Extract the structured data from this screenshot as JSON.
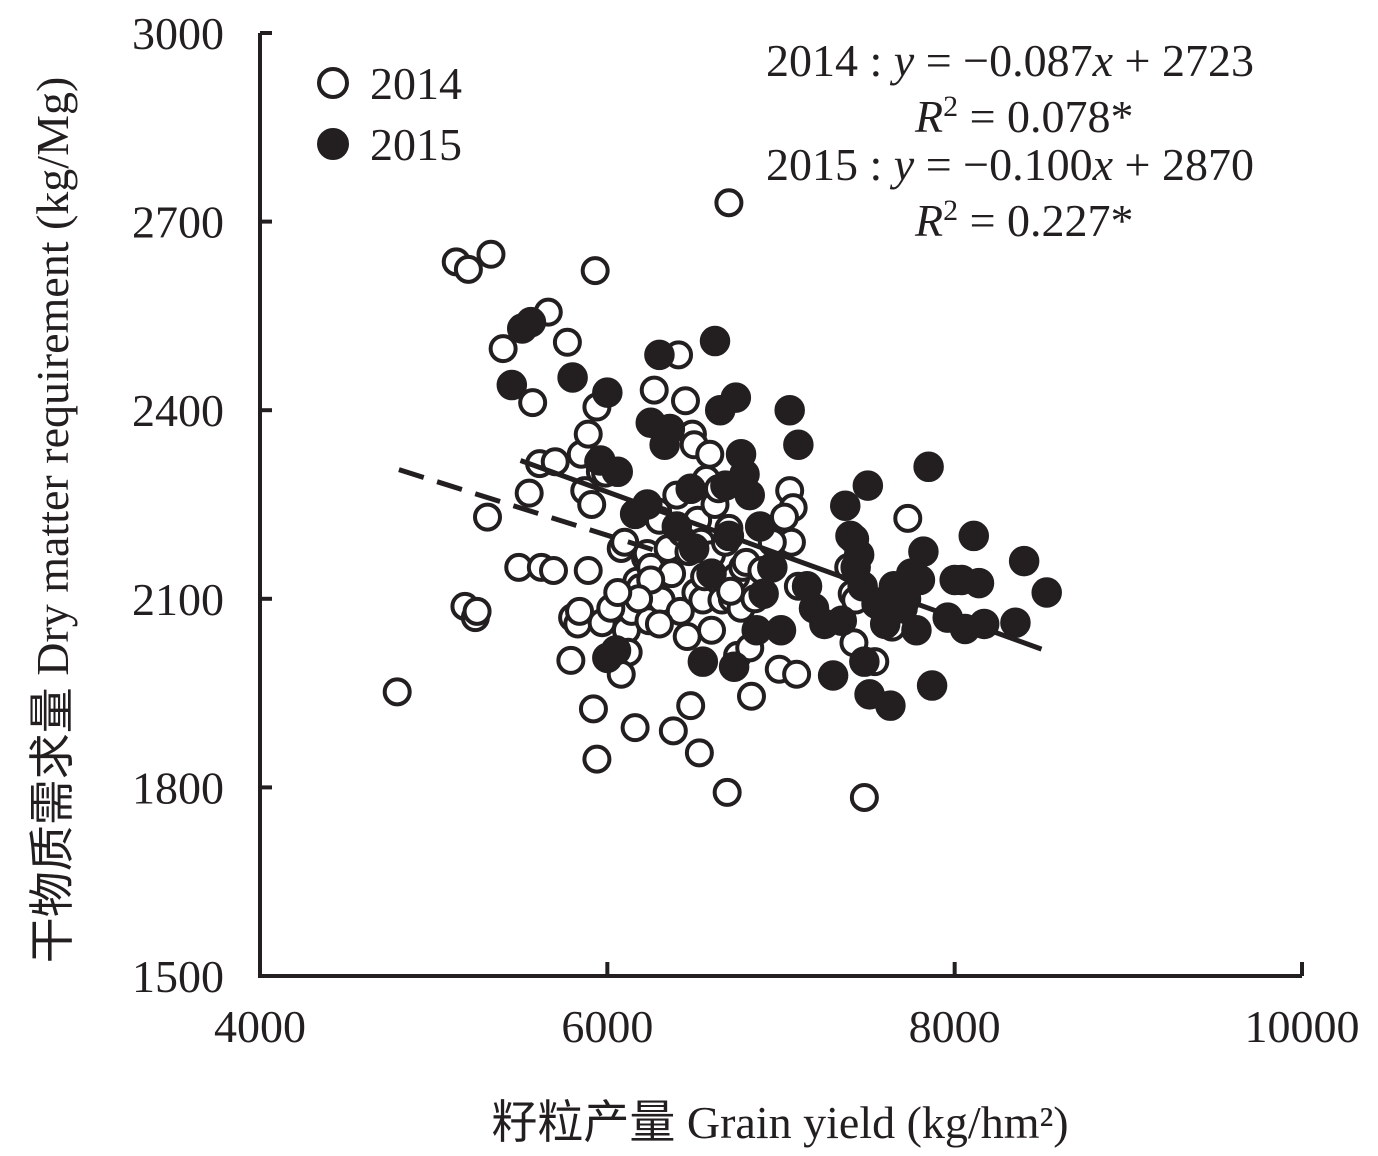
{
  "chart_data": {
    "type": "scatter",
    "title": "",
    "xlabel": "籽粒产量 Grain yield (kg/hm²)",
    "ylabel": "干物质需求量 Dry matter requirement (kg/Mg)",
    "xlim": [
      4000,
      10000
    ],
    "ylim": [
      1500,
      3000
    ],
    "xticks": [
      4000,
      6000,
      8000,
      10000
    ],
    "yticks": [
      1500,
      1800,
      2100,
      2400,
      2700,
      3000
    ],
    "xtick_labels": [
      "4000",
      "6000",
      "8000",
      "10000"
    ],
    "ytick_labels": [
      "1500",
      "1800",
      "2100",
      "2400",
      "2700",
      "3000"
    ],
    "legend_position": "top-left",
    "series": [
      {
        "name": "2014",
        "marker": "open-circle",
        "color": "#231f20",
        "fill": "#ffffff",
        "trendline": {
          "style": "dashed",
          "slope": -0.087,
          "intercept": 2723,
          "x_range": [
            4800,
            6300
          ]
        },
        "points": [
          [
            4790,
            1952
          ],
          [
            5130,
            2636
          ],
          [
            5200,
            2624
          ],
          [
            5330,
            2648
          ],
          [
            5180,
            2088
          ],
          [
            5240,
            2070
          ],
          [
            5250,
            2080
          ],
          [
            5310,
            2230
          ],
          [
            5400,
            2498
          ],
          [
            5490,
            2150
          ],
          [
            5550,
            2268
          ],
          [
            5570,
            2412
          ],
          [
            5620,
            2150
          ],
          [
            5690,
            2145
          ],
          [
            5660,
            2556
          ],
          [
            5770,
            2508
          ],
          [
            5610,
            2315
          ],
          [
            5700,
            2318
          ],
          [
            5790,
            2002
          ],
          [
            5800,
            2070
          ],
          [
            5830,
            2060
          ],
          [
            5840,
            2080
          ],
          [
            5850,
            2330
          ],
          [
            5870,
            2272
          ],
          [
            5890,
            2145
          ],
          [
            5910,
            2250
          ],
          [
            5930,
            2622
          ],
          [
            5940,
            2405
          ],
          [
            5950,
            2318
          ],
          [
            5960,
            2302
          ],
          [
            5970,
            2062
          ],
          [
            5990,
            2300
          ],
          [
            6050,
            2302
          ],
          [
            5890,
            2362
          ],
          [
            5920,
            1925
          ],
          [
            5940,
            1845
          ],
          [
            6080,
            2180
          ],
          [
            6100,
            2190
          ],
          [
            6110,
            2050
          ],
          [
            6120,
            2015
          ],
          [
            6140,
            2080
          ],
          [
            6160,
            1895
          ],
          [
            6170,
            2128
          ],
          [
            6190,
            2118
          ],
          [
            6220,
            2165
          ],
          [
            6230,
            2172
          ],
          [
            6240,
            2065
          ],
          [
            6250,
            2150
          ],
          [
            6270,
            2432
          ],
          [
            6290,
            2238
          ],
          [
            6300,
            2225
          ],
          [
            6310,
            2098
          ],
          [
            6350,
            2180
          ],
          [
            6370,
            2140
          ],
          [
            6380,
            1890
          ],
          [
            6400,
            2265
          ],
          [
            6410,
            2488
          ],
          [
            6420,
            2080
          ],
          [
            6430,
            2205
          ],
          [
            6450,
            2415
          ],
          [
            6460,
            2040
          ],
          [
            6480,
            1930
          ],
          [
            6490,
            2362
          ],
          [
            6500,
            2345
          ],
          [
            6510,
            2110
          ],
          [
            6520,
            2225
          ],
          [
            6530,
            1855
          ],
          [
            6540,
            2190
          ],
          [
            6550,
            2098
          ],
          [
            6560,
            2135
          ],
          [
            6570,
            2290
          ],
          [
            6590,
            2330
          ],
          [
            6600,
            2170
          ],
          [
            6620,
            2250
          ],
          [
            6640,
            2275
          ],
          [
            6660,
            2098
          ],
          [
            6680,
            2190
          ],
          [
            6700,
            2212
          ],
          [
            6720,
            2100
          ],
          [
            6740,
            2135
          ],
          [
            6750,
            2010
          ],
          [
            6770,
            2085
          ],
          [
            6780,
            2150
          ],
          [
            6800,
            2158
          ],
          [
            6820,
            2022
          ],
          [
            6830,
            1945
          ],
          [
            6850,
            2100
          ],
          [
            6690,
            1792
          ],
          [
            6700,
            2730
          ],
          [
            6710,
            2112
          ],
          [
            6990,
            1988
          ],
          [
            7050,
            2272
          ],
          [
            7070,
            2245
          ],
          [
            7090,
            1980
          ],
          [
            7100,
            2120
          ],
          [
            7060,
            2190
          ],
          [
            7020,
            2230
          ],
          [
            7390,
            2150
          ],
          [
            7410,
            2108
          ],
          [
            7420,
            2030
          ],
          [
            7430,
            2098
          ],
          [
            7480,
            1784
          ],
          [
            7640,
            2055
          ],
          [
            7730,
            2228
          ],
          [
            7540,
            2000
          ],
          [
            6300,
            2060
          ],
          [
            6250,
            2130
          ],
          [
            6180,
            2100
          ],
          [
            6020,
            2085
          ],
          [
            6060,
            2110
          ],
          [
            6080,
            1980
          ],
          [
            6470,
            2175
          ],
          [
            6600,
            2050
          ],
          [
            6890,
            2145
          ],
          [
            6950,
            2190
          ]
        ]
      },
      {
        "name": "2015",
        "marker": "filled-circle",
        "color": "#231f20",
        "fill": "#231f20",
        "trendline": {
          "style": "solid",
          "slope": -0.1,
          "intercept": 2870,
          "x_range": [
            5500,
            8500
          ]
        },
        "points": [
          [
            5450,
            2440
          ],
          [
            5510,
            2530
          ],
          [
            5560,
            2540
          ],
          [
            5800,
            2452
          ],
          [
            6000,
            2428
          ],
          [
            5960,
            2320
          ],
          [
            6060,
            2302
          ],
          [
            6000,
            2006
          ],
          [
            6050,
            2018
          ],
          [
            6160,
            2235
          ],
          [
            6230,
            2250
          ],
          [
            6250,
            2380
          ],
          [
            6300,
            2488
          ],
          [
            6330,
            2345
          ],
          [
            6360,
            2370
          ],
          [
            6400,
            2215
          ],
          [
            6480,
            2275
          ],
          [
            6500,
            2180
          ],
          [
            6550,
            2000
          ],
          [
            6600,
            2140
          ],
          [
            6620,
            2510
          ],
          [
            6650,
            2400
          ],
          [
            6680,
            2280
          ],
          [
            6700,
            2200
          ],
          [
            6730,
            1992
          ],
          [
            6740,
            2420
          ],
          [
            6770,
            2330
          ],
          [
            6790,
            2298
          ],
          [
            6820,
            2265
          ],
          [
            6860,
            2050
          ],
          [
            6880,
            2215
          ],
          [
            6900,
            2108
          ],
          [
            6950,
            2150
          ],
          [
            7000,
            2050
          ],
          [
            7050,
            2400
          ],
          [
            7100,
            2345
          ],
          [
            7150,
            2120
          ],
          [
            7190,
            2085
          ],
          [
            7250,
            2060
          ],
          [
            7300,
            1978
          ],
          [
            7370,
            2248
          ],
          [
            7400,
            2200
          ],
          [
            7430,
            2150
          ],
          [
            7450,
            2170
          ],
          [
            7470,
            2120
          ],
          [
            7480,
            2000
          ],
          [
            7500,
            2280
          ],
          [
            7510,
            1948
          ],
          [
            7550,
            2092
          ],
          [
            7600,
            2060
          ],
          [
            7630,
            1930
          ],
          [
            7650,
            2120
          ],
          [
            7700,
            2085
          ],
          [
            7720,
            2100
          ],
          [
            7750,
            2140
          ],
          [
            7780,
            2050
          ],
          [
            7800,
            2130
          ],
          [
            7820,
            2175
          ],
          [
            7850,
            2310
          ],
          [
            7870,
            1962
          ],
          [
            8000,
            2130
          ],
          [
            8040,
            2130
          ],
          [
            8060,
            2052
          ],
          [
            8110,
            2200
          ],
          [
            8140,
            2125
          ],
          [
            8170,
            2060
          ],
          [
            8350,
            2062
          ],
          [
            8400,
            2160
          ],
          [
            8530,
            2110
          ],
          [
            7350,
            2065
          ],
          [
            7420,
            2195
          ],
          [
            7960,
            2070
          ]
        ]
      }
    ],
    "legend": [
      {
        "label": "2014",
        "marker": "open-circle"
      },
      {
        "label": "2015",
        "marker": "filled-circle"
      }
    ],
    "annotations": {
      "eq2014_prefix": "2014 : ",
      "eq2014_rhs": " = −0.087",
      "eq2014_tail": " + 2723",
      "r2_2014_value": " = 0.078*",
      "eq2015_prefix": "2015 : ",
      "eq2015_rhs": " = −0.100",
      "eq2015_tail": " + 2870",
      "r2_2015_value": " = 0.227*",
      "y_var": "y",
      "x_var": "x",
      "r_var": "R",
      "r_sup": "2"
    }
  }
}
